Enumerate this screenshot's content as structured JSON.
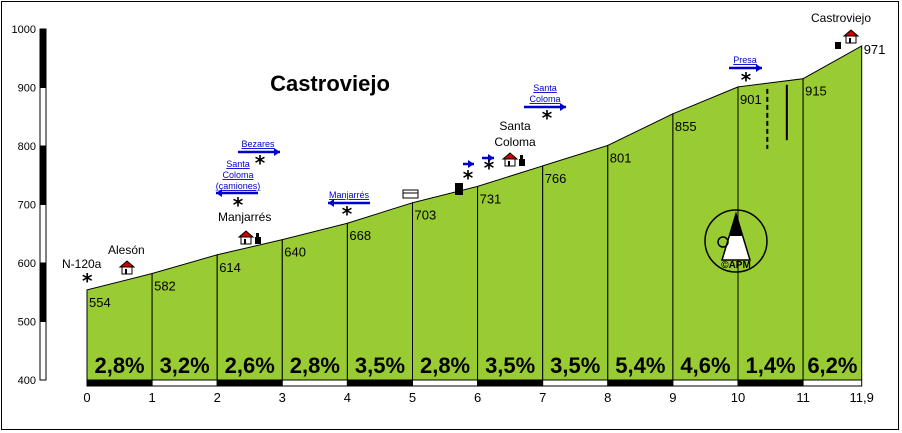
{
  "chart_data": {
    "type": "area",
    "title": "Castroviejo",
    "xlabel": "",
    "ylabel": "",
    "xlim": [
      0,
      11.9
    ],
    "ylim": [
      400,
      1000
    ],
    "y_ticks": [
      "400",
      "500",
      "600",
      "700",
      "800",
      "900",
      "1000"
    ],
    "x_ticks": [
      "0",
      "1",
      "2",
      "3",
      "4",
      "5",
      "6",
      "7",
      "8",
      "9",
      "10",
      "11",
      "11,9"
    ],
    "x_tick_values": [
      0,
      1,
      2,
      3,
      4,
      5,
      6,
      7,
      8,
      9,
      10,
      11,
      11.9
    ],
    "profile": [
      {
        "x": 0,
        "y": 554
      },
      {
        "x": 1,
        "y": 582
      },
      {
        "x": 2,
        "y": 614
      },
      {
        "x": 3,
        "y": 640
      },
      {
        "x": 4,
        "y": 668
      },
      {
        "x": 5,
        "y": 703
      },
      {
        "x": 6,
        "y": 731
      },
      {
        "x": 7,
        "y": 766
      },
      {
        "x": 8,
        "y": 801
      },
      {
        "x": 9,
        "y": 855
      },
      {
        "x": 10,
        "y": 901
      },
      {
        "x": 11,
        "y": 915
      },
      {
        "x": 11.9,
        "y": 971
      }
    ],
    "elevation_labels": [
      "554",
      "582",
      "614",
      "640",
      "668",
      "703",
      "731",
      "766",
      "801",
      "855",
      "901",
      "915",
      "971"
    ],
    "gradients": [
      "2,8%",
      "3,2%",
      "2,6%",
      "2,8%",
      "3,5%",
      "2,8%",
      "3,5%",
      "3,5%",
      "5,4%",
      "4,6%",
      "1,4%",
      "6,2%"
    ],
    "gradient_bar_colors": [
      "#000000",
      "#ffffff",
      "#000000",
      "#ffffff",
      "#000000",
      "#ffffff",
      "#000000",
      "#ffffff",
      "#000000",
      "#ffffff",
      "#000000",
      "#ffffff"
    ],
    "places": [
      {
        "name": "N-120a",
        "x": 0
      },
      {
        "name": "Alesón",
        "x": 0.62
      },
      {
        "name": "Manjarrés",
        "x": 2.45
      },
      {
        "name": "Santa\nColoma",
        "x": 6.5
      },
      {
        "name": "Castroviejo",
        "x": 11.75
      }
    ],
    "road_signs": [
      {
        "text": "Bezares",
        "x": 2.35,
        "direction": "right"
      },
      {
        "text": "Santa\nColoma\n(camiones)",
        "x": 2.1,
        "direction": "left"
      },
      {
        "text": "Manjarrés",
        "x": 4.05,
        "direction": "left"
      },
      {
        "text": "Santa\nColoma",
        "x": 7.1,
        "direction": "right"
      },
      {
        "text": "Presa",
        "x": 10.1,
        "direction": "right"
      }
    ],
    "colors": {
      "fill": "#99cc33",
      "line": "#000000",
      "sign": "#0000cc",
      "axis": "#000000",
      "house_roof": "#cc0000"
    }
  },
  "logo": {
    "text": "©APM"
  }
}
